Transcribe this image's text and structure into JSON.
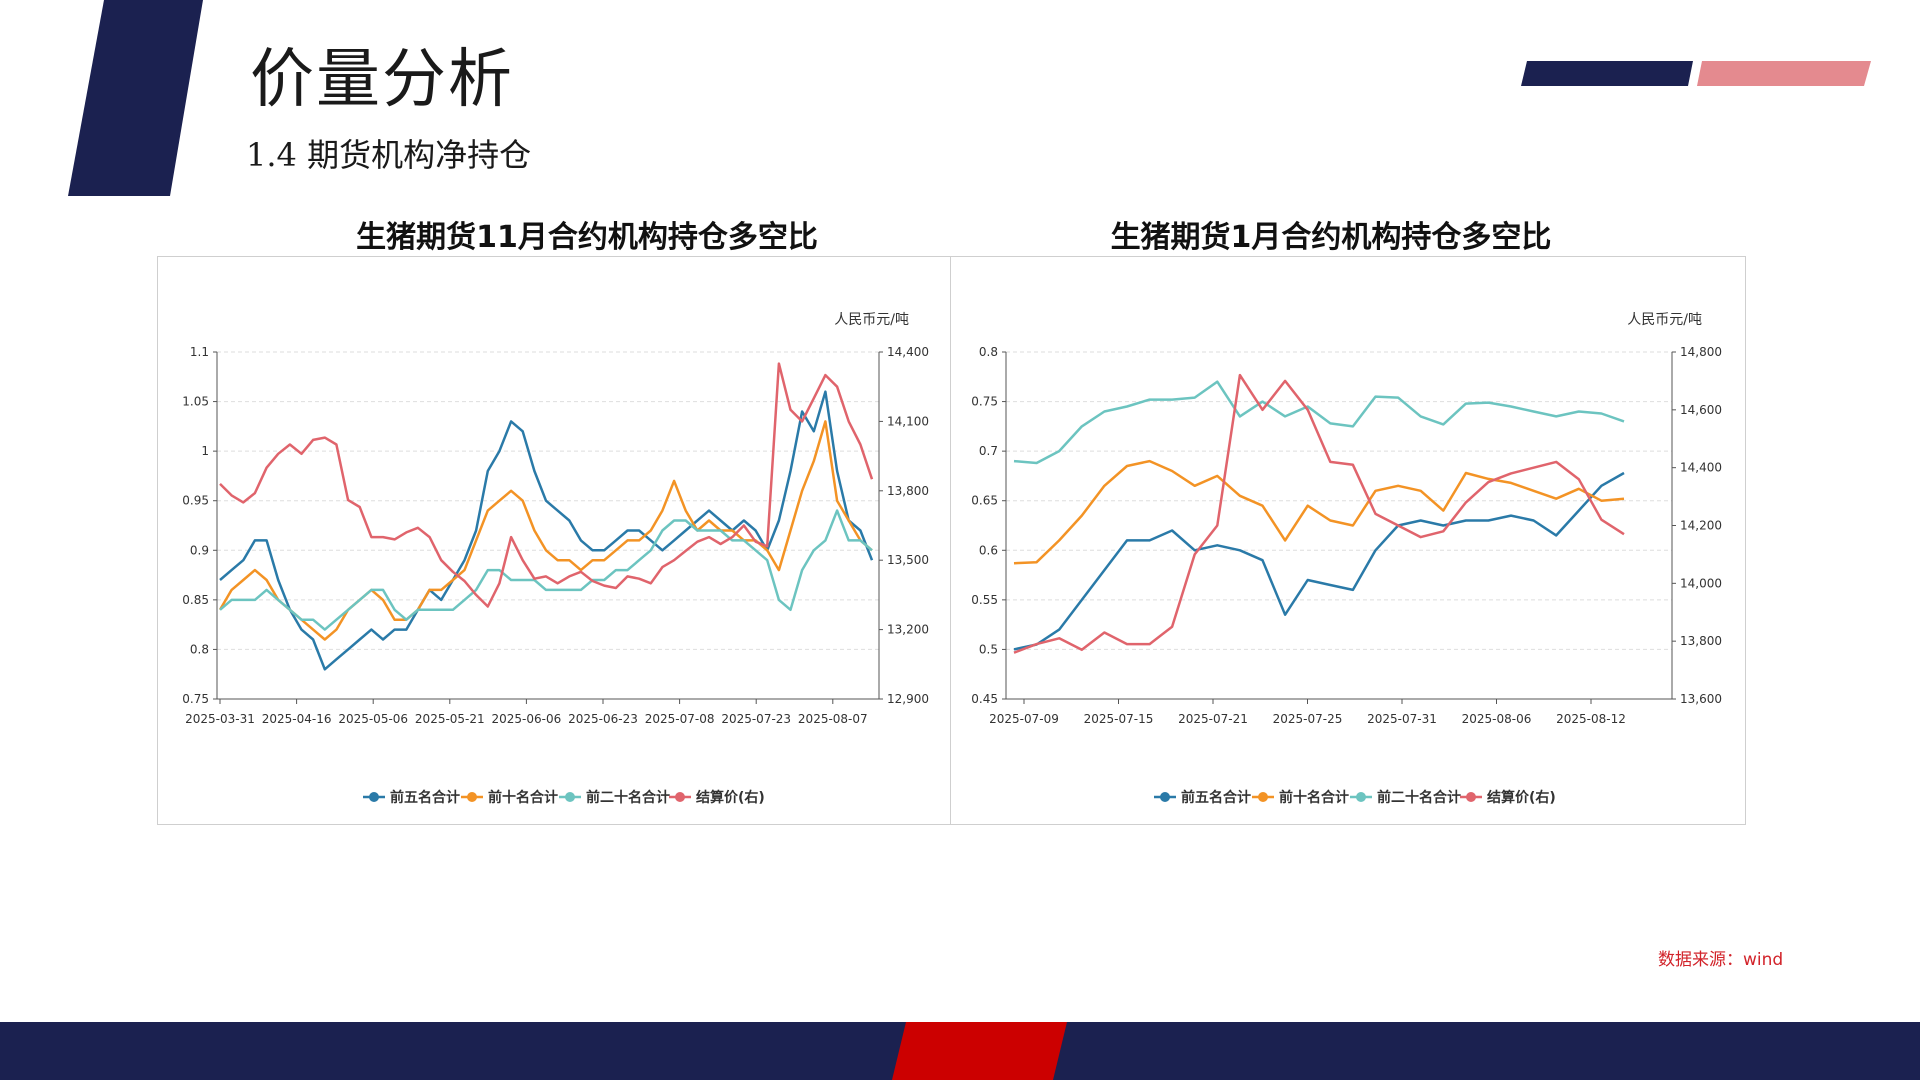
{
  "slide": {
    "title": "价量分析",
    "subtitle": "1.4 期货机构净持仓",
    "source": "数据来源：wind"
  },
  "colors": {
    "navy": "#1b2150",
    "pink": "#e48a8f",
    "red": "#cc0000",
    "series": [
      "#2a7aa8",
      "#f39325",
      "#6cc4c0",
      "#e0646c"
    ]
  },
  "chart_data": [
    {
      "type": "line",
      "title": "生猪期货11月合约机构持仓多空比",
      "y_right_unit": "人民币元/吨",
      "x_ticks": [
        "2025-03-31",
        "2025-04-16",
        "2025-05-06",
        "2025-05-21",
        "2025-06-06",
        "2025-06-23",
        "2025-07-08",
        "2025-07-23",
        "2025-08-07"
      ],
      "ylim": [
        0.75,
        1.1
      ],
      "y_ticks": [
        "0.75",
        "0.8",
        "0.85",
        "0.9",
        "0.95",
        "1",
        "1.05",
        "1.1"
      ],
      "y2lim": [
        12900,
        14400
      ],
      "y2_ticks": [
        "12,900",
        "13,200",
        "13,500",
        "13,800",
        "14,100",
        "14,400"
      ],
      "legend_position": "bottom",
      "grid": true,
      "series": [
        {
          "name": "前五名合计",
          "axis": "left",
          "values": [
            0.87,
            0.88,
            0.89,
            0.91,
            0.91,
            0.87,
            0.84,
            0.82,
            0.81,
            0.78,
            0.79,
            0.8,
            0.81,
            0.82,
            0.81,
            0.82,
            0.82,
            0.84,
            0.86,
            0.85,
            0.87,
            0.89,
            0.92,
            0.98,
            1.0,
            1.03,
            1.02,
            0.98,
            0.95,
            0.94,
            0.93,
            0.91,
            0.9,
            0.9,
            0.91,
            0.92,
            0.92,
            0.91,
            0.9,
            0.91,
            0.92,
            0.93,
            0.94,
            0.93,
            0.92,
            0.93,
            0.92,
            0.9,
            0.93,
            0.98,
            1.04,
            1.02,
            1.06,
            0.98,
            0.93,
            0.92,
            0.89
          ]
        },
        {
          "name": "前十名合计",
          "axis": "left",
          "values": [
            0.84,
            0.86,
            0.87,
            0.88,
            0.87,
            0.85,
            0.84,
            0.83,
            0.82,
            0.81,
            0.82,
            0.84,
            0.85,
            0.86,
            0.85,
            0.83,
            0.83,
            0.84,
            0.86,
            0.86,
            0.87,
            0.88,
            0.91,
            0.94,
            0.95,
            0.96,
            0.95,
            0.92,
            0.9,
            0.89,
            0.89,
            0.88,
            0.89,
            0.89,
            0.9,
            0.91,
            0.91,
            0.92,
            0.94,
            0.97,
            0.94,
            0.92,
            0.93,
            0.92,
            0.92,
            0.91,
            0.91,
            0.9,
            0.88,
            0.92,
            0.96,
            0.99,
            1.03,
            0.95,
            0.93,
            0.91,
            0.9
          ]
        },
        {
          "name": "前二十名合计",
          "axis": "left",
          "values": [
            0.84,
            0.85,
            0.85,
            0.85,
            0.86,
            0.85,
            0.84,
            0.83,
            0.83,
            0.82,
            0.83,
            0.84,
            0.85,
            0.86,
            0.86,
            0.84,
            0.83,
            0.84,
            0.84,
            0.84,
            0.84,
            0.85,
            0.86,
            0.88,
            0.88,
            0.87,
            0.87,
            0.87,
            0.86,
            0.86,
            0.86,
            0.86,
            0.87,
            0.87,
            0.88,
            0.88,
            0.89,
            0.9,
            0.92,
            0.93,
            0.93,
            0.92,
            0.92,
            0.92,
            0.91,
            0.91,
            0.9,
            0.89,
            0.85,
            0.84,
            0.88,
            0.9,
            0.91,
            0.94,
            0.91,
            0.91,
            0.9
          ]
        },
        {
          "name": "结算价(右)",
          "axis": "right",
          "values": [
            13830,
            13780,
            13750,
            13790,
            13900,
            13960,
            14000,
            13960,
            14020,
            14030,
            14000,
            13760,
            13730,
            13600,
            13600,
            13590,
            13620,
            13640,
            13600,
            13500,
            13450,
            13410,
            13350,
            13300,
            13400,
            13600,
            13500,
            13420,
            13430,
            13400,
            13430,
            13450,
            13410,
            13390,
            13380,
            13430,
            13420,
            13400,
            13470,
            13500,
            13540,
            13580,
            13600,
            13570,
            13600,
            13650,
            13580,
            13560,
            14350,
            14150,
            14100,
            14200,
            14300,
            14250,
            14100,
            14000,
            13850
          ]
        }
      ]
    },
    {
      "type": "line",
      "title": "生猪期货1月合约机构持仓多空比",
      "y_right_unit": "人民币元/吨",
      "x_ticks": [
        "2025-07-09",
        "2025-07-15",
        "2025-07-21",
        "2025-07-25",
        "2025-07-31",
        "2025-08-06",
        "2025-08-12"
      ],
      "ylim": [
        0.45,
        0.8
      ],
      "y_ticks": [
        "0.45",
        "0.5",
        "0.55",
        "0.6",
        "0.65",
        "0.7",
        "0.75",
        "0.8"
      ],
      "y2lim": [
        13600,
        14800
      ],
      "y2_ticks": [
        "13,600",
        "13,800",
        "14,000",
        "14,200",
        "14,400",
        "14,600",
        "14,800"
      ],
      "legend_position": "bottom",
      "grid": true,
      "series": [
        {
          "name": "前五名合计",
          "axis": "left",
          "values": [
            0.5,
            0.505,
            0.52,
            0.55,
            0.58,
            0.61,
            0.61,
            0.62,
            0.6,
            0.605,
            0.6,
            0.59,
            0.535,
            0.57,
            0.565,
            0.56,
            0.6,
            0.625,
            0.63,
            0.625,
            0.63,
            0.63,
            0.635,
            0.63,
            0.615,
            0.64,
            0.665,
            0.678
          ]
        },
        {
          "name": "前十名合计",
          "axis": "left",
          "values": [
            0.587,
            0.588,
            0.61,
            0.635,
            0.665,
            0.685,
            0.69,
            0.68,
            0.665,
            0.675,
            0.655,
            0.645,
            0.61,
            0.645,
            0.63,
            0.625,
            0.66,
            0.665,
            0.66,
            0.64,
            0.678,
            0.672,
            0.668,
            0.66,
            0.652,
            0.662,
            0.65,
            0.652
          ]
        },
        {
          "name": "前二十名合计",
          "axis": "left",
          "values": [
            0.69,
            0.688,
            0.7,
            0.725,
            0.74,
            0.745,
            0.752,
            0.752,
            0.754,
            0.77,
            0.735,
            0.75,
            0.735,
            0.745,
            0.728,
            0.725,
            0.755,
            0.754,
            0.735,
            0.727,
            0.748,
            0.749,
            0.745,
            0.74,
            0.735,
            0.74,
            0.738,
            0.73
          ]
        },
        {
          "name": "结算价(右)",
          "axis": "right",
          "values": [
            13760,
            13790,
            13810,
            13770,
            13830,
            13790,
            13790,
            13850,
            14100,
            14200,
            14720,
            14600,
            14700,
            14600,
            14420,
            14410,
            14240,
            14200,
            14160,
            14180,
            14280,
            14350,
            14380,
            14400,
            14420,
            14360,
            14220,
            14170
          ]
        }
      ]
    }
  ]
}
